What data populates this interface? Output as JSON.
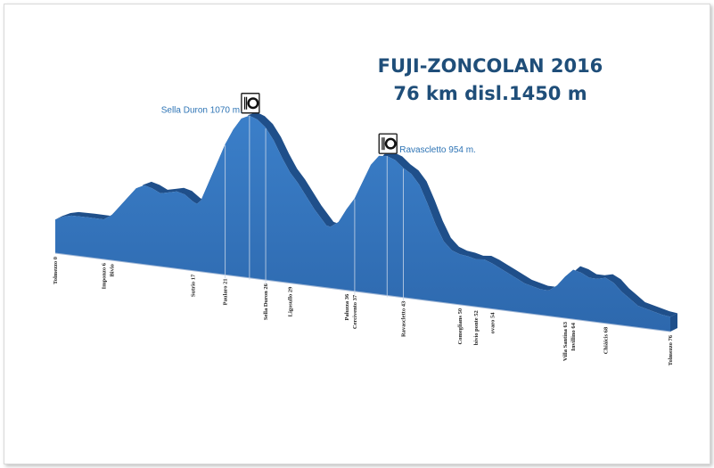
{
  "title": {
    "line1": "FUJI-ZONCOLAN 2016",
    "line2": "76 km disl.1450 m"
  },
  "colors": {
    "fill": "#2e6fb7",
    "fill_top": "#3a7cc4",
    "side": "#1f4f8a",
    "title": "#1f4e79",
    "label": "#2e74b5"
  },
  "chart_data": {
    "type": "area",
    "xlabel": "",
    "ylabel": "",
    "x_range": [
      0,
      76
    ],
    "y_range": [
      250,
      1150
    ],
    "profile": [
      [
        0,
        420
      ],
      [
        1,
        440
      ],
      [
        2,
        450
      ],
      [
        4,
        452
      ],
      [
        6,
        452
      ],
      [
        7,
        480
      ],
      [
        8,
        530
      ],
      [
        9,
        580
      ],
      [
        10,
        630
      ],
      [
        11,
        650
      ],
      [
        12,
        640
      ],
      [
        13,
        620
      ],
      [
        14,
        630
      ],
      [
        15,
        640
      ],
      [
        16,
        630
      ],
      [
        17,
        600
      ],
      [
        17.5,
        590
      ],
      [
        18,
        610
      ],
      [
        19,
        710
      ],
      [
        20,
        810
      ],
      [
        21,
        910
      ],
      [
        22,
        990
      ],
      [
        23,
        1050
      ],
      [
        24,
        1070
      ],
      [
        25,
        1055
      ],
      [
        26,
        1020
      ],
      [
        27,
        960
      ],
      [
        28,
        880
      ],
      [
        29,
        810
      ],
      [
        30,
        760
      ],
      [
        31,
        700
      ],
      [
        32,
        640
      ],
      [
        33,
        590
      ],
      [
        33.5,
        565
      ],
      [
        34,
        560
      ],
      [
        35,
        590
      ],
      [
        36,
        660
      ],
      [
        37,
        720
      ],
      [
        38,
        810
      ],
      [
        39,
        900
      ],
      [
        40,
        950
      ],
      [
        41,
        954
      ],
      [
        42,
        940
      ],
      [
        43,
        905
      ],
      [
        44,
        880
      ],
      [
        45,
        830
      ],
      [
        46,
        740
      ],
      [
        47,
        640
      ],
      [
        48,
        560
      ],
      [
        49,
        520
      ],
      [
        50,
        505
      ],
      [
        51,
        500
      ],
      [
        52,
        490
      ],
      [
        53,
        495
      ],
      [
        54,
        480
      ],
      [
        55,
        460
      ],
      [
        56,
        440
      ],
      [
        57,
        420
      ],
      [
        58,
        400
      ],
      [
        59,
        390
      ],
      [
        60,
        380
      ],
      [
        61,
        380
      ],
      [
        62,
        410
      ],
      [
        63,
        460
      ],
      [
        64,
        500
      ],
      [
        65,
        490
      ],
      [
        66,
        470
      ],
      [
        67,
        470
      ],
      [
        68,
        480
      ],
      [
        69,
        460
      ],
      [
        70,
        420
      ],
      [
        71,
        390
      ],
      [
        72,
        360
      ],
      [
        73,
        350
      ],
      [
        74,
        340
      ],
      [
        75,
        330
      ],
      [
        76,
        325
      ]
    ],
    "peaks": [
      {
        "label": "Sella Duron 1070 m.",
        "km": 24,
        "elevation": 1070,
        "icon": "restaurant-icon"
      },
      {
        "label": "Ravascletto 954 m.",
        "km": 41,
        "elevation": 954,
        "icon": "restaurant-icon"
      }
    ],
    "x_tick_labels": [
      {
        "label": "Tolmezzo 0",
        "km": 0
      },
      {
        "label": "Imponzo 6",
        "km": 6
      },
      {
        "label": "Bivio",
        "km": 7
      },
      {
        "label": "Sutrio  17",
        "km": 17
      },
      {
        "label": "Paularo 21",
        "km": 21
      },
      {
        "label": "Sella Duron 26",
        "km": 26
      },
      {
        "label": "Ligosullo 29",
        "km": 29
      },
      {
        "label": "Paluzza 36",
        "km": 36
      },
      {
        "label": "Cercivento  37",
        "km": 37
      },
      {
        "label": "Ravascletto  43",
        "km": 43
      },
      {
        "label": "Comeglians  50",
        "km": 50
      },
      {
        "label": "bivio ponte  52",
        "km": 52
      },
      {
        "label": "ovaro 54",
        "km": 54
      },
      {
        "label": "Villa Santina 63",
        "km": 63
      },
      {
        "label": "Invillino 64",
        "km": 64
      },
      {
        "label": "Chiàicis 68",
        "km": 68
      },
      {
        "label": "Tolmezzo 76",
        "km": 76
      }
    ],
    "guide_lines_km": [
      21,
      26,
      37,
      43
    ]
  }
}
